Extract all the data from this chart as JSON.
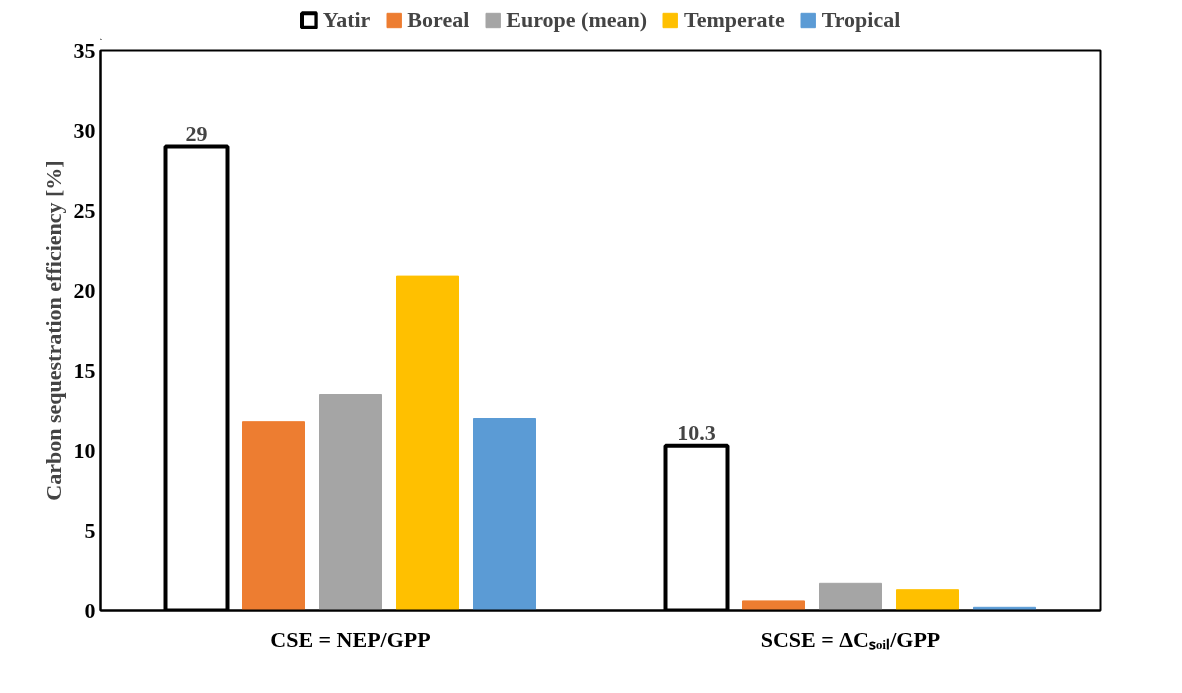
{
  "chart_data": {
    "type": "bar",
    "ylabel": "Carbon sequestration efficiency [%]",
    "categories": [
      "CSE = NEP/GPP",
      "SCSE = ΔCₛₒᵢₗ/GPP"
    ],
    "series": [
      {
        "name": "Yatir",
        "color": "#ffffff",
        "values": [
          29,
          10.3
        ],
        "value_labels": [
          "29",
          "10.3"
        ]
      },
      {
        "name": "Boreal",
        "color": "#ed7d31",
        "values": [
          11.8,
          0.6
        ]
      },
      {
        "name": "Europe (mean)",
        "color": "#a5a5a5",
        "values": [
          13.5,
          1.7
        ]
      },
      {
        "name": "Temperate",
        "color": "#ffc000",
        "values": [
          20.9,
          1.3
        ]
      },
      {
        "name": "Tropical",
        "color": "#5b9bd5",
        "values": [
          12.0,
          0.2
        ]
      }
    ],
    "ylim": [
      0,
      35
    ],
    "yticks": [
      0,
      5,
      10,
      15,
      20,
      25,
      30,
      35
    ],
    "grid": false,
    "legend": "top"
  }
}
